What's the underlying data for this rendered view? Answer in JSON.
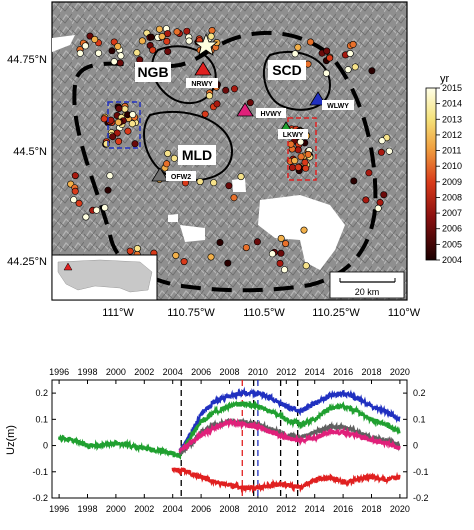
{
  "map": {
    "lat_labels": [
      "44.75°N",
      "44.5°N",
      "44.25°N"
    ],
    "lon_labels": [
      "111°W",
      "110.75°W",
      "110.5°W",
      "110.25°W",
      "110°W"
    ],
    "caldera_labels": [
      "NGB",
      "SCD",
      "MLD"
    ],
    "stations": [
      {
        "name": "NRWY",
        "color": "#e02020"
      },
      {
        "name": "HVWY",
        "color": "#e0207a"
      },
      {
        "name": "WLWY",
        "color": "#2030c0"
      },
      {
        "name": "LKWY",
        "color": "#20a030"
      },
      {
        "name": "OFW2",
        "color": "#707070"
      }
    ],
    "scale_bar": "20 km",
    "colorbar": {
      "title": "yr",
      "ticks": [
        "2015",
        "2014",
        "2013",
        "2012",
        "2011",
        "2010",
        "2009",
        "2008",
        "2007",
        "2006",
        "2005",
        "2004"
      ]
    }
  },
  "chart_data": {
    "type": "line",
    "ylabel": "Uz(m)",
    "x_top_ticks": [
      "1996",
      "1998",
      "2000",
      "2002",
      "2004",
      "2006",
      "2008",
      "2010",
      "2012",
      "2014",
      "2016",
      "2018",
      "2020"
    ],
    "x_bottom_ticks": [
      "1996",
      "1998",
      "2000",
      "2002",
      "2004",
      "2006",
      "2008",
      "2010",
      "2012",
      "2014",
      "2016",
      "2018",
      "2020"
    ],
    "y_ticks_left": [
      "0.2",
      "0.1",
      "0",
      "-0.1",
      "-0.2"
    ],
    "y_ticks_right": [
      "0.2",
      "0.1",
      "0",
      "-0.1",
      "-0.2"
    ],
    "xlim": [
      1995.5,
      2020.5
    ],
    "ylim": [
      -0.2,
      0.25
    ],
    "series": [
      {
        "color": "#2030c0",
        "x": [
          2004.5,
          2005,
          2006,
          2007,
          2008,
          2009,
          2010,
          2011,
          2012,
          2013,
          2014,
          2015,
          2016,
          2017,
          2018,
          2019,
          2020
        ],
        "values": [
          -0.02,
          0.02,
          0.12,
          0.17,
          0.19,
          0.2,
          0.2,
          0.18,
          0.15,
          0.13,
          0.16,
          0.19,
          0.2,
          0.18,
          0.15,
          0.13,
          0.1
        ]
      },
      {
        "color": "#20a030",
        "x": [
          1996,
          1997,
          1998,
          1999,
          2000,
          2001,
          2002,
          2003,
          2004,
          2004.5,
          2005,
          2006,
          2007,
          2008,
          2009,
          2010,
          2011,
          2012,
          2013,
          2014,
          2015,
          2016,
          2017,
          2018,
          2019,
          2020
        ],
        "values": [
          0.03,
          0.02,
          0,
          0,
          0.01,
          0,
          -0.01,
          -0.02,
          -0.03,
          -0.04,
          0.01,
          0.09,
          0.13,
          0.15,
          0.16,
          0.15,
          0.13,
          0.1,
          0.08,
          0.1,
          0.14,
          0.15,
          0.13,
          0.1,
          0.08,
          0.05
        ]
      },
      {
        "color": "#606060",
        "x": [
          2004.5,
          2005,
          2006,
          2007,
          2008,
          2009,
          2010,
          2011,
          2012,
          2013,
          2014,
          2015,
          2016,
          2017,
          2018,
          2019,
          2020
        ],
        "values": [
          -0.03,
          -0.01,
          0.05,
          0.08,
          0.09,
          0.09,
          0.08,
          0.06,
          0.04,
          0.03,
          0.05,
          0.07,
          0.07,
          0.05,
          0.03,
          0.02,
          0
        ]
      },
      {
        "color": "#e0207a",
        "x": [
          2004.5,
          2005,
          2006,
          2007,
          2008,
          2009,
          2010,
          2011,
          2012,
          2013,
          2014,
          2015,
          2016,
          2017,
          2018,
          2019,
          2020
        ],
        "values": [
          -0.02,
          0,
          0.04,
          0.07,
          0.09,
          0.08,
          0.07,
          0.05,
          0.03,
          0.02,
          0.03,
          0.05,
          0.05,
          0.04,
          0.02,
          0.01,
          -0.01
        ]
      },
      {
        "color": "#e02020",
        "x": [
          2004,
          2005,
          2006,
          2007,
          2008,
          2009,
          2010,
          2011,
          2012,
          2013,
          2014,
          2015,
          2016,
          2017,
          2018,
          2019,
          2020
        ],
        "values": [
          -0.09,
          -0.1,
          -0.12,
          -0.14,
          -0.15,
          -0.16,
          -0.16,
          -0.15,
          -0.15,
          -0.16,
          -0.13,
          -0.12,
          -0.14,
          -0.13,
          -0.12,
          -0.13,
          -0.12
        ]
      }
    ],
    "vlines": [
      {
        "x": 2004.6,
        "color": "#000000"
      },
      {
        "x": 2008.9,
        "color": "#e02020"
      },
      {
        "x": 2009.7,
        "color": "#000000"
      },
      {
        "x": 2010.0,
        "color": "#2030c0"
      },
      {
        "x": 2011.6,
        "color": "#000000"
      },
      {
        "x": 2012.8,
        "color": "#000000"
      }
    ]
  }
}
